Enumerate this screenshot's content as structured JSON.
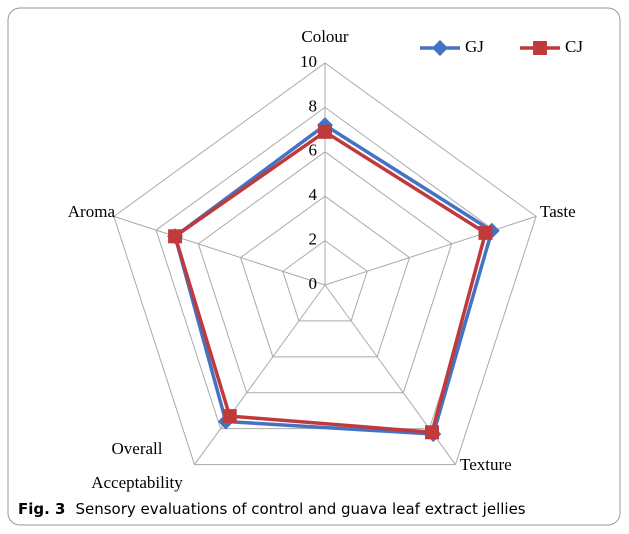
{
  "chart_data": {
    "type": "radar",
    "categories": [
      "Colour",
      "Taste",
      "Texture",
      "Overall Acceptability",
      "Aroma"
    ],
    "series": [
      {
        "name": "GJ",
        "color": "#4472c4",
        "marker": "diamond",
        "values": [
          7.2,
          7.9,
          8.3,
          7.6,
          7.1
        ]
      },
      {
        "name": "CJ",
        "color": "#c0393b",
        "marker": "square",
        "values": [
          6.9,
          7.6,
          8.2,
          7.3,
          7.1
        ]
      }
    ],
    "rlim": [
      0,
      10
    ],
    "rticks": [
      0,
      2,
      4,
      6,
      8,
      10
    ],
    "grid": true,
    "legend": "top-right",
    "caption": {
      "label": "Fig. 3",
      "text": "Sensory evaluations of control and guava leaf extract jellies"
    }
  }
}
